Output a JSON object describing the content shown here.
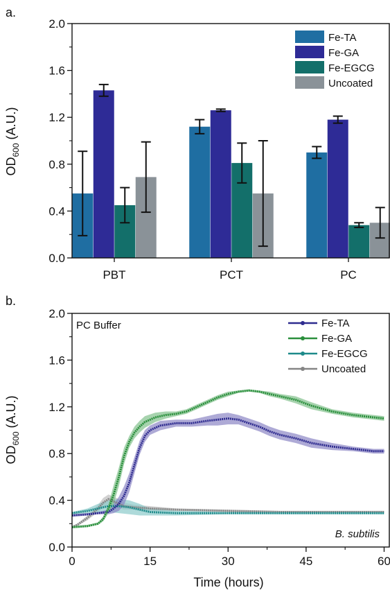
{
  "chart_data": [
    {
      "panel_label": "a.",
      "type": "bar",
      "ylabel_main": "OD",
      "ylabel_sub": "600",
      "ylabel_unit": " (A.U.)",
      "ylim": [
        0,
        2.0
      ],
      "yticks": [
        "0.0",
        "0.4",
        "0.8",
        "1.2",
        "1.6",
        "2.0"
      ],
      "categories": [
        "PBT",
        "PCT",
        "PC"
      ],
      "series": [
        {
          "name": "Fe-TA",
          "color": "#1f6ea2",
          "values": [
            0.55,
            1.12,
            0.9
          ],
          "errors": [
            0.36,
            0.06,
            0.05
          ]
        },
        {
          "name": "Fe-GA",
          "color": "#2e2b96",
          "values": [
            1.43,
            1.26,
            1.18
          ],
          "errors": [
            0.05,
            0.01,
            0.03
          ]
        },
        {
          "name": "Fe-EGCG",
          "color": "#136f6a",
          "values": [
            0.45,
            0.81,
            0.28
          ],
          "errors": [
            0.15,
            0.17,
            0.02
          ]
        },
        {
          "name": "Uncoated",
          "color": "#8a9298",
          "values": [
            0.69,
            0.55,
            0.3
          ],
          "errors": [
            0.3,
            0.45,
            0.13
          ]
        }
      ],
      "legend_position": "top-right"
    },
    {
      "panel_label": "b.",
      "type": "line",
      "inset_label": "PC Buffer",
      "organism_label": "B. subtilis",
      "xlabel": "Time (hours)",
      "ylabel_main": "OD",
      "ylabel_sub": "600",
      "ylabel_unit": " (A.U.)",
      "xlim": [
        0,
        61
      ],
      "ylim": [
        0,
        2.0
      ],
      "xticks": [
        "0",
        "15",
        "30",
        "45",
        "60"
      ],
      "yticks": [
        "0.0",
        "0.4",
        "0.8",
        "1.2",
        "1.6",
        "2.0"
      ],
      "series": [
        {
          "name": "Fe-TA",
          "color": "#2e2b8f",
          "band": "#8c86c4",
          "x": [
            0,
            3,
            5,
            7,
            8,
            9,
            10,
            11,
            12,
            13,
            14,
            15,
            17,
            20,
            23,
            26,
            28,
            30,
            32,
            34,
            36,
            38,
            40,
            43,
            46,
            50,
            54,
            58,
            60
          ],
          "y": [
            0.27,
            0.28,
            0.29,
            0.3,
            0.33,
            0.37,
            0.44,
            0.55,
            0.7,
            0.85,
            0.95,
            1.0,
            1.04,
            1.06,
            1.06,
            1.08,
            1.09,
            1.1,
            1.09,
            1.06,
            1.03,
            0.99,
            0.96,
            0.93,
            0.89,
            0.86,
            0.84,
            0.82,
            0.82
          ],
          "spread": [
            0.01,
            0.01,
            0.01,
            0.02,
            0.04,
            0.06,
            0.08,
            0.08,
            0.07,
            0.06,
            0.05,
            0.04,
            0.04,
            0.03,
            0.03,
            0.04,
            0.05,
            0.05,
            0.04,
            0.04,
            0.04,
            0.04,
            0.04,
            0.04,
            0.04,
            0.03,
            0.02,
            0.02,
            0.02
          ]
        },
        {
          "name": "Fe-GA",
          "color": "#2a8f3c",
          "band": "#82c08c",
          "x": [
            0,
            3,
            5,
            6,
            7,
            8,
            9,
            10,
            11,
            12,
            13,
            14,
            16,
            18,
            20,
            22,
            24,
            26,
            28,
            30,
            32,
            34,
            36,
            38,
            40,
            43,
            46,
            50,
            54,
            58,
            60
          ],
          "y": [
            0.17,
            0.18,
            0.2,
            0.24,
            0.33,
            0.45,
            0.6,
            0.78,
            0.9,
            0.98,
            1.03,
            1.07,
            1.11,
            1.13,
            1.14,
            1.16,
            1.2,
            1.24,
            1.28,
            1.31,
            1.33,
            1.34,
            1.33,
            1.31,
            1.29,
            1.26,
            1.21,
            1.16,
            1.13,
            1.11,
            1.1
          ],
          "spread": [
            0.01,
            0.01,
            0.01,
            0.02,
            0.04,
            0.08,
            0.08,
            0.07,
            0.05,
            0.05,
            0.05,
            0.05,
            0.04,
            0.03,
            0.02,
            0.02,
            0.02,
            0.02,
            0.02,
            0.02,
            0.01,
            0.01,
            0.01,
            0.02,
            0.02,
            0.03,
            0.03,
            0.02,
            0.02,
            0.02,
            0.02
          ]
        },
        {
          "name": "Fe-EGCG",
          "color": "#1d8a8a",
          "band": "#8ccaca",
          "x": [
            0,
            3,
            5,
            7,
            9,
            11,
            13,
            15,
            20,
            30,
            40,
            50,
            60
          ],
          "y": [
            0.29,
            0.31,
            0.33,
            0.35,
            0.35,
            0.34,
            0.32,
            0.3,
            0.29,
            0.29,
            0.29,
            0.29,
            0.29
          ],
          "spread": [
            0.01,
            0.02,
            0.04,
            0.05,
            0.06,
            0.06,
            0.05,
            0.03,
            0.02,
            0.01,
            0.01,
            0.01,
            0.01
          ]
        },
        {
          "name": "Uncoated",
          "color": "#858585",
          "band": "#bdbdbd",
          "x": [
            0,
            1,
            3,
            5,
            6,
            7,
            8,
            9,
            10,
            12,
            15,
            20,
            30,
            40,
            50,
            60
          ],
          "y": [
            0.17,
            0.19,
            0.25,
            0.33,
            0.38,
            0.41,
            0.39,
            0.37,
            0.35,
            0.34,
            0.33,
            0.32,
            0.31,
            0.3,
            0.3,
            0.3
          ],
          "spread": [
            0.01,
            0.01,
            0.02,
            0.03,
            0.04,
            0.04,
            0.04,
            0.04,
            0.03,
            0.02,
            0.02,
            0.01,
            0.01,
            0.01,
            0.01,
            0.01
          ]
        }
      ],
      "legend_position": "top-right"
    }
  ]
}
